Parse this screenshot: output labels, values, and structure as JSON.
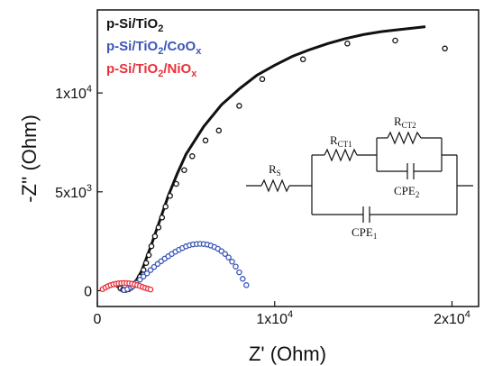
{
  "chart_data": {
    "type": "scatter",
    "title": "",
    "xlabel": "Z' (Ohm)",
    "ylabel": "-Z'' (Ohm)",
    "xlim": [
      0,
      21500
    ],
    "ylim": [
      -800,
      14200
    ],
    "x_ticks": [
      {
        "value": 0,
        "base": "0",
        "exp": ""
      },
      {
        "value": 10000,
        "base": "1x10",
        "exp": "4"
      },
      {
        "value": 20000,
        "base": "2x10",
        "exp": "4"
      }
    ],
    "y_ticks": [
      {
        "value": 0,
        "base": "0",
        "exp": ""
      },
      {
        "value": 5000,
        "base": "5x10",
        "exp": "3"
      },
      {
        "value": 10000,
        "base": "1x10",
        "exp": "4"
      }
    ],
    "legend_position": "top-left",
    "series": [
      {
        "name": "p-Si/TiO2",
        "name_base": "p-Si/TiO",
        "name_sub": "2",
        "name_rest": "",
        "name_sub2": "",
        "color": "#111111",
        "points": [
          [
            1150,
            300
          ],
          [
            1300,
            120
          ],
          [
            1450,
            50
          ],
          [
            1600,
            40
          ],
          [
            1750,
            70
          ],
          [
            1900,
            150
          ],
          [
            2050,
            260
          ],
          [
            2200,
            430
          ],
          [
            2400,
            700
          ],
          [
            2600,
            1050
          ],
          [
            2750,
            1400
          ],
          [
            2900,
            1800
          ],
          [
            3050,
            2250
          ],
          [
            3250,
            2750
          ],
          [
            3450,
            3200
          ],
          [
            3650,
            3700
          ],
          [
            3850,
            4250
          ],
          [
            4100,
            4800
          ],
          [
            4450,
            5400
          ],
          [
            4900,
            6100
          ],
          [
            5350,
            6800
          ],
          [
            6100,
            7600
          ],
          [
            6850,
            8100
          ],
          [
            8000,
            9350
          ],
          [
            9300,
            10700
          ],
          [
            11600,
            11700
          ],
          [
            14100,
            12500
          ],
          [
            16800,
            12650
          ],
          [
            19600,
            12250
          ]
        ],
        "fit": [
          [
            1600,
            100
          ],
          [
            2000,
            200
          ],
          [
            2500,
            1000
          ],
          [
            3000,
            2200
          ],
          [
            3500,
            3500
          ],
          [
            4000,
            4800
          ],
          [
            4500,
            5900
          ],
          [
            5000,
            6900
          ],
          [
            6000,
            8300
          ],
          [
            7000,
            9400
          ],
          [
            8000,
            10200
          ],
          [
            9000,
            10900
          ],
          [
            10000,
            11400
          ],
          [
            11000,
            11850
          ],
          [
            12000,
            12200
          ],
          [
            13000,
            12500
          ],
          [
            14000,
            12750
          ],
          [
            15000,
            12950
          ],
          [
            16000,
            13100
          ],
          [
            17000,
            13200
          ],
          [
            18000,
            13300
          ],
          [
            18500,
            13350
          ]
        ]
      },
      {
        "name": "p-Si/TiO2/CoOx",
        "name_base": "p-Si/TiO",
        "name_sub": "2",
        "name_rest": "/CoO",
        "name_sub2": "x",
        "color": "#3a56b8",
        "points": [
          [
            1500,
            30
          ],
          [
            1700,
            80
          ],
          [
            1900,
            160
          ],
          [
            2000,
            230
          ],
          [
            2200,
            390
          ],
          [
            2400,
            560
          ],
          [
            2600,
            720
          ],
          [
            2800,
            880
          ],
          [
            3000,
            1040
          ],
          [
            3200,
            1200
          ],
          [
            3400,
            1350
          ],
          [
            3600,
            1490
          ],
          [
            3800,
            1620
          ],
          [
            4000,
            1740
          ],
          [
            4200,
            1860
          ],
          [
            4400,
            1970
          ],
          [
            4600,
            2070
          ],
          [
            4800,
            2160
          ],
          [
            5000,
            2240
          ],
          [
            5200,
            2300
          ],
          [
            5400,
            2340
          ],
          [
            5600,
            2360
          ],
          [
            5800,
            2370
          ],
          [
            6000,
            2360
          ],
          [
            6200,
            2330
          ],
          [
            6400,
            2280
          ],
          [
            6600,
            2210
          ],
          [
            6800,
            2120
          ],
          [
            7000,
            2000
          ],
          [
            7200,
            1860
          ],
          [
            7400,
            1680
          ],
          [
            7600,
            1470
          ],
          [
            7800,
            1220
          ],
          [
            8000,
            930
          ],
          [
            8200,
            600
          ],
          [
            8400,
            280
          ]
        ]
      },
      {
        "name": "p-Si/TiO2/NiOx",
        "name_base": "p-Si/TiO",
        "name_sub": "2",
        "name_rest": "/NiO",
        "name_sub2": "x",
        "color": "#e8313a",
        "points": [
          [
            300,
            80
          ],
          [
            450,
            160
          ],
          [
            600,
            230
          ],
          [
            750,
            280
          ],
          [
            900,
            320
          ],
          [
            1050,
            350
          ],
          [
            1200,
            370
          ],
          [
            1350,
            380
          ],
          [
            1500,
            385
          ],
          [
            1650,
            380
          ],
          [
            1800,
            370
          ],
          [
            1950,
            350
          ],
          [
            2100,
            320
          ],
          [
            2250,
            280
          ],
          [
            2400,
            240
          ],
          [
            2550,
            190
          ],
          [
            2700,
            140
          ],
          [
            2850,
            100
          ],
          [
            3000,
            60
          ]
        ]
      }
    ],
    "circuit": {
      "labels": [
        {
          "id": "rs",
          "base": "R",
          "sub": "S"
        },
        {
          "id": "rct1",
          "base": "R",
          "sub": "CT1"
        },
        {
          "id": "rct2",
          "base": "R",
          "sub": "CT2"
        },
        {
          "id": "cpe2",
          "base": "CPE",
          "sub": "2"
        },
        {
          "id": "cpe1",
          "base": "CPE",
          "sub": "1"
        }
      ]
    }
  }
}
